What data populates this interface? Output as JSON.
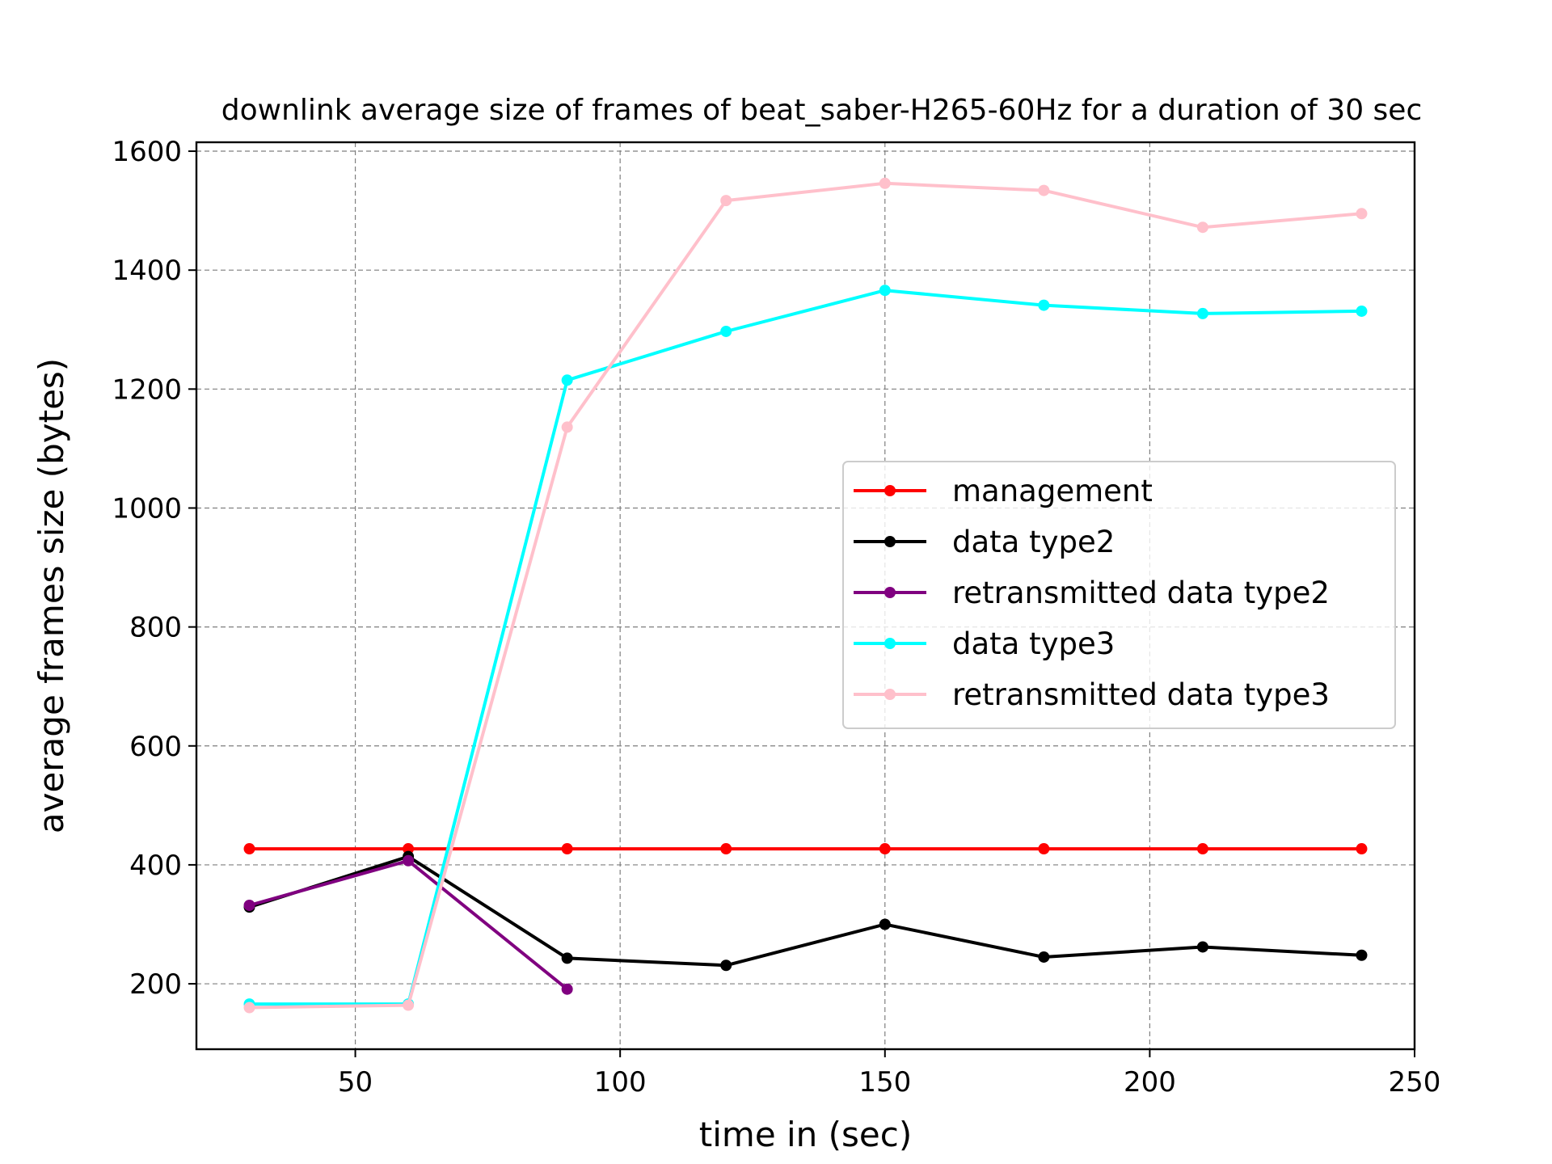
{
  "chart_data": {
    "type": "line",
    "title": "downlink average size of frames of beat_saber-H265-60Hz for a duration of 30 sec",
    "xlabel": "time in (sec)",
    "ylabel": "average frames size (bytes)",
    "xlim": [
      20,
      250
    ],
    "ylim": [
      90,
      1615
    ],
    "xticks": [
      50,
      100,
      150,
      200,
      250
    ],
    "yticks": [
      200,
      400,
      600,
      800,
      1000,
      1200,
      1400,
      1600
    ],
    "grid": true,
    "legend_position": "center-right",
    "series": [
      {
        "name": "management",
        "color": "#ff0000",
        "x": [
          30,
          60,
          90,
          120,
          150,
          180,
          210,
          240
        ],
        "y": [
          427,
          427,
          427,
          427,
          427,
          427,
          427,
          427
        ]
      },
      {
        "name": "data type2",
        "color": "#000000",
        "x": [
          30,
          60,
          90,
          120,
          150,
          180,
          210,
          240
        ],
        "y": [
          329,
          414,
          243,
          231,
          300,
          245,
          262,
          248
        ]
      },
      {
        "name": "retransmitted data type2",
        "color": "#800080",
        "x": [
          30,
          60,
          90
        ],
        "y": [
          332,
          407,
          191
        ]
      },
      {
        "name": "data type3",
        "color": "#00ffff",
        "x": [
          30,
          60,
          90,
          120,
          150,
          180,
          210,
          240
        ],
        "y": [
          166,
          166,
          1215,
          1297,
          1366,
          1341,
          1327,
          1331
        ]
      },
      {
        "name": "retransmitted data type3",
        "color": "#ffc0cb",
        "x": [
          30,
          60,
          90,
          120,
          150,
          180,
          210,
          240
        ],
        "y": [
          160,
          164,
          1136,
          1517,
          1546,
          1534,
          1472,
          1495
        ]
      }
    ]
  }
}
